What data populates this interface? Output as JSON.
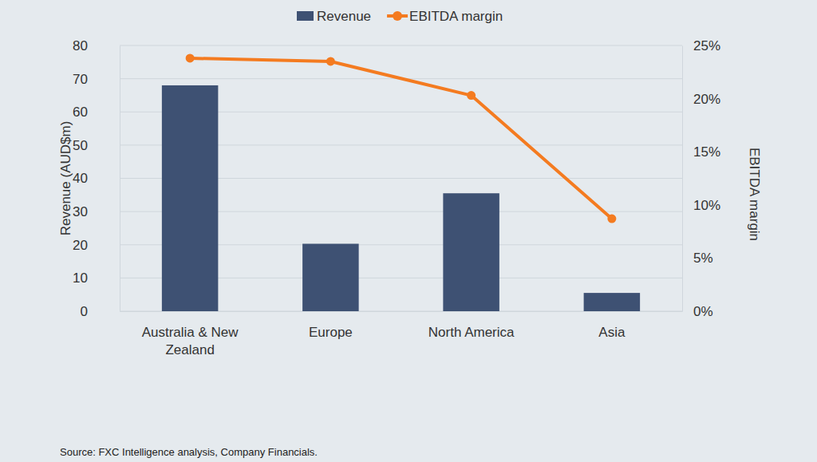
{
  "chart_data": {
    "type": "bar",
    "categories": [
      "Australia & New Zealand",
      "Europe",
      "North America",
      "Asia"
    ],
    "series": [
      {
        "name": "Revenue",
        "type": "bar",
        "color": "#3e5173",
        "values": [
          68,
          20.3,
          35.5,
          5.5
        ]
      },
      {
        "name": "EBITDA margin",
        "type": "line",
        "axis": "y2",
        "color": "#f47b20",
        "marker": "circle",
        "values": [
          23.8,
          23.5,
          20.3,
          8.7
        ]
      }
    ],
    "y_label": "Revenue (AUD$m)",
    "y2_label": "EBITDA margin",
    "ylim": [
      0,
      80
    ],
    "yticks": [
      0,
      10,
      20,
      30,
      40,
      50,
      60,
      70,
      80
    ],
    "y2lim": [
      0,
      25
    ],
    "y2ticks": [
      {
        "value": 0,
        "label": "0%"
      },
      {
        "value": 5,
        "label": "5%"
      },
      {
        "value": 10,
        "label": "10%"
      },
      {
        "value": 15,
        "label": "15%"
      },
      {
        "value": 20,
        "label": "20%"
      },
      {
        "value": 25,
        "label": "25%"
      }
    ],
    "grid": true,
    "legend": "top",
    "source": "Source: FXC Intelligence analysis, Company Financials."
  }
}
